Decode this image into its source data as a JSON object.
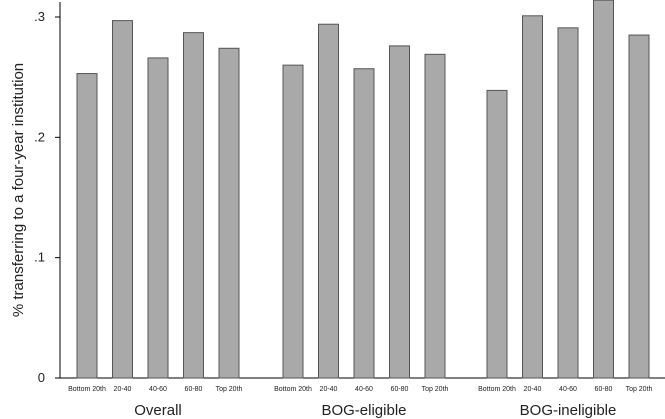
{
  "chart_data": {
    "type": "bar",
    "title": "",
    "ylabel": "% transferring to a four-year institution",
    "xlabel": "",
    "ylim": [
      0,
      0.3
    ],
    "yticks": [
      {
        "value": 0,
        "label": "0"
      },
      {
        "value": 0.1,
        "label": ".1"
      },
      {
        "value": 0.2,
        "label": ".2"
      },
      {
        "value": 0.3,
        "label": ".3"
      }
    ],
    "grid": false,
    "bar_color": "#a9a9a9",
    "bar_edge_color": "#555555",
    "groups": [
      {
        "label": "Overall",
        "categories": [
          "Bottom 20th",
          "20-40",
          "40-60",
          "60-80",
          "Top 20th"
        ],
        "values": [
          0.253,
          0.297,
          0.266,
          0.287,
          0.274
        ]
      },
      {
        "label": "BOG-eligible",
        "categories": [
          "Bottom 20th",
          "20-40",
          "40-60",
          "60-80",
          "Top 20th"
        ],
        "values": [
          0.26,
          0.294,
          0.257,
          0.276,
          0.269
        ]
      },
      {
        "label": "BOG-ineligible",
        "categories": [
          "Bottom 20th",
          "20-40",
          "40-60",
          "60-80",
          "Top 20th"
        ],
        "values": [
          0.239,
          0.301,
          0.291,
          0.314,
          0.285
        ]
      }
    ]
  }
}
